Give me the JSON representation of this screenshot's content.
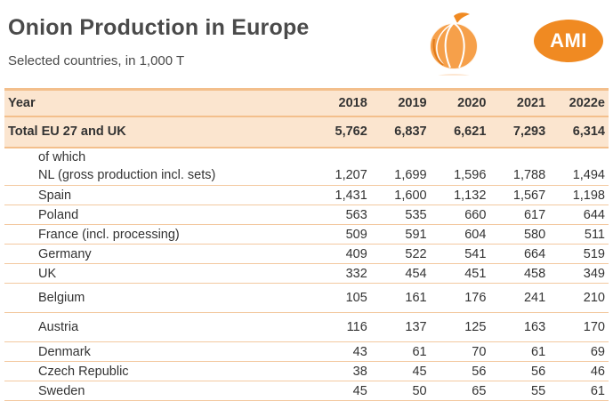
{
  "header": {
    "title": "Onion Production in Europe",
    "subtitle": "Selected countries, in 1,000 T",
    "badge": "AMI"
  },
  "chart_data": {
    "type": "table",
    "title": "Onion Production in Europe",
    "subtitle": "Selected countries, in 1,000 T",
    "columns": [
      "Year",
      "2018",
      "2019",
      "2020",
      "2021",
      "2022e"
    ],
    "total": {
      "label": "Total EU 27 and UK",
      "values": [
        "5,762",
        "6,837",
        "6,621",
        "7,293",
        "6,314"
      ]
    },
    "subheading": "of which",
    "rows": [
      {
        "label": "NL (gross production incl. sets)",
        "values": [
          "1,207",
          "1,699",
          "1,596",
          "1,788",
          "1,494"
        ]
      },
      {
        "label": "Spain",
        "values": [
          "1,431",
          "1,600",
          "1,132",
          "1,567",
          "1,198"
        ]
      },
      {
        "label": "Poland",
        "values": [
          "563",
          "535",
          "660",
          "617",
          "644"
        ]
      },
      {
        "label": "France (incl. processing)",
        "values": [
          "509",
          "591",
          "604",
          "580",
          "511"
        ]
      },
      {
        "label": "Germany",
        "values": [
          "409",
          "522",
          "541",
          "664",
          "519"
        ]
      },
      {
        "label": "UK",
        "values": [
          "332",
          "454",
          "451",
          "458",
          "349"
        ]
      },
      {
        "label": "Belgium",
        "values": [
          "105",
          "161",
          "176",
          "241",
          "210"
        ]
      },
      {
        "label": "Austria",
        "values": [
          "116",
          "137",
          "125",
          "163",
          "170"
        ]
      },
      {
        "label": "Denmark",
        "values": [
          "43",
          "61",
          "70",
          "61",
          "69"
        ]
      },
      {
        "label": "Czech Republic",
        "values": [
          "38",
          "45",
          "56",
          "56",
          "46"
        ]
      },
      {
        "label": "Sweden",
        "values": [
          "45",
          "50",
          "65",
          "55",
          "61"
        ]
      }
    ]
  },
  "colors": {
    "accent": "#f08a22",
    "band": "#fbe5cf",
    "rule": "#f3c9a0"
  }
}
